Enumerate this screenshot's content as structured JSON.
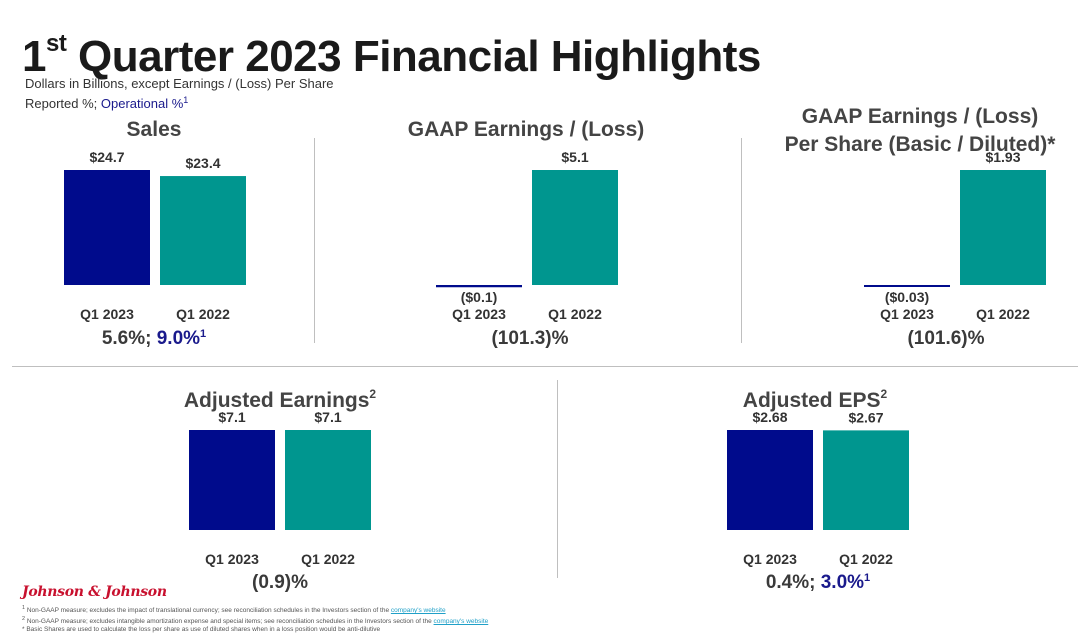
{
  "header": {
    "title_prefix": "1",
    "title_sup": "st",
    "title_rest": " Quarter 2023 Financial Highlights",
    "subtitle_line1": "Dollars in Billions, except Earnings / (Loss) Per Share",
    "subtitle_reported": "Reported %; ",
    "subtitle_operational": "Operational %",
    "subtitle_operational_sup": "1"
  },
  "colors": {
    "q1_2023": "#000b8c",
    "q1_2022": "#00968f"
  },
  "panels": {
    "sales": {
      "title": "Sales",
      "growth_reported": "5.6%; ",
      "growth_operational": "9.0%",
      "growth_sup": "1"
    },
    "gaap_earnings": {
      "title": "GAAP Earnings / (Loss)",
      "growth": "(101.3)%"
    },
    "gaap_eps": {
      "title_line1": "GAAP Earnings / (Loss)",
      "title_line2": "Per Share (Basic / Diluted)*",
      "growth": "(101.6)%"
    },
    "adj_earnings": {
      "title": "Adjusted Earnings",
      "title_sup": "2",
      "growth": "(0.9)%"
    },
    "adj_eps": {
      "title": "Adjusted EPS",
      "title_sup": "2",
      "growth_reported": "0.4%; ",
      "growth_operational": "3.0%",
      "growth_sup": "1"
    }
  },
  "chart_data": [
    {
      "type": "bar",
      "id": "sales",
      "categories": [
        "Q1 2023",
        "Q1 2022"
      ],
      "values": [
        24.7,
        23.4
      ],
      "labels": [
        "$24.7",
        "$23.4"
      ],
      "title": "Sales"
    },
    {
      "type": "bar",
      "id": "gaap_earnings",
      "categories": [
        "Q1 2023",
        "Q1 2022"
      ],
      "values": [
        -0.1,
        5.1
      ],
      "labels": [
        "($0.1)",
        "$5.1"
      ],
      "title": "GAAP Earnings / (Loss)"
    },
    {
      "type": "bar",
      "id": "gaap_eps",
      "categories": [
        "Q1 2023",
        "Q1 2022"
      ],
      "values": [
        -0.03,
        1.93
      ],
      "labels": [
        "($0.03)",
        "$1.93"
      ],
      "title": "GAAP Earnings / (Loss) Per Share (Basic / Diluted)*"
    },
    {
      "type": "bar",
      "id": "adj_earnings",
      "categories": [
        "Q1 2023",
        "Q1 2022"
      ],
      "values": [
        7.1,
        7.1
      ],
      "labels": [
        "$7.1",
        "$7.1"
      ],
      "title": "Adjusted Earnings"
    },
    {
      "type": "bar",
      "id": "adj_eps",
      "categories": [
        "Q1 2023",
        "Q1 2022"
      ],
      "values": [
        2.68,
        2.67
      ],
      "labels": [
        "$2.68",
        "$2.67"
      ],
      "title": "Adjusted EPS"
    }
  ],
  "footer": {
    "logo": "Johnson & Johnson",
    "note1_sup": "1",
    "note1_text": " Non-GAAP measure; excludes the impact of translational currency; see reconciliation schedules in the Investors section of the ",
    "note2_sup": "2",
    "note2_text": " Non-GAAP measure; excludes intangible amortization expense and special items; see reconciliation schedules in the Investors section of the ",
    "link_text": "company's website",
    "note3": "* Basic Shares are used to calculate the loss per share as use of diluted shares when in a loss position would be anti-dilutive"
  }
}
